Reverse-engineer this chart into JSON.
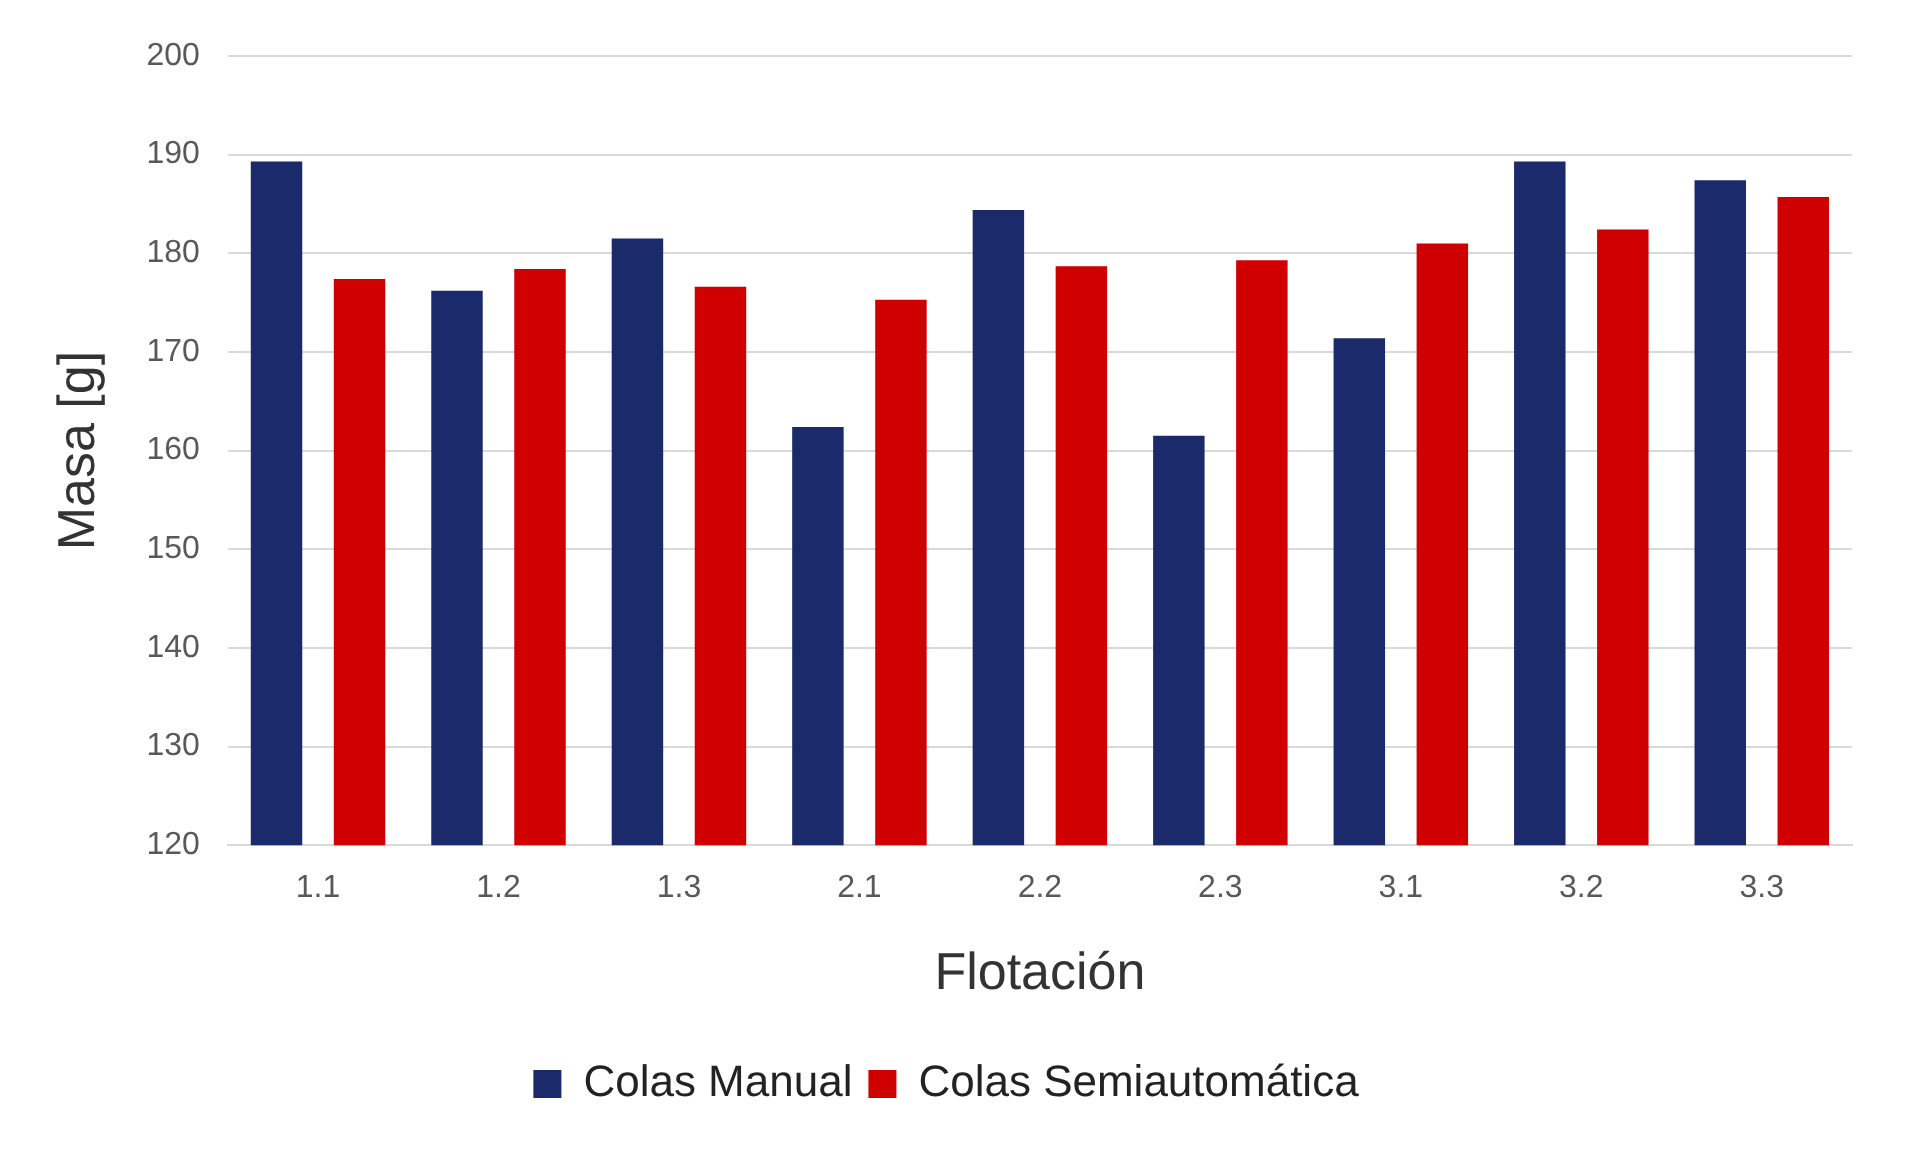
{
  "chart_data": {
    "type": "bar",
    "xlabel": "Flotación",
    "ylabel": "Masa [g]",
    "categories": [
      "1.1",
      "1.2",
      "1.3",
      "2.1",
      "2.2",
      "2.3",
      "3.1",
      "3.2",
      "3.3"
    ],
    "series": [
      {
        "name": "Colas Manual",
        "color": "#1b2a6b",
        "values": [
          189.3,
          176.2,
          181.5,
          162.4,
          184.4,
          161.5,
          171.4,
          189.3,
          187.4
        ]
      },
      {
        "name": "Colas Semiautomática",
        "color": "#d00000",
        "values": [
          177.4,
          178.4,
          176.6,
          175.3,
          178.7,
          179.3,
          181.0,
          182.4,
          185.7
        ]
      }
    ],
    "ylim": [
      120,
      200
    ],
    "yticks": [
      120,
      130,
      140,
      150,
      160,
      170,
      180,
      190,
      200
    ],
    "grid": "y",
    "legend": "bottom"
  }
}
